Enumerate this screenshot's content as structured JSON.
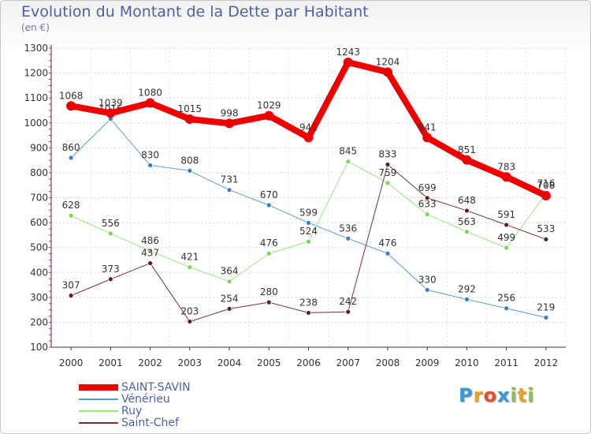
{
  "chart_data": {
    "type": "line",
    "title": "Evolution du Montant de la Dette par Habitant",
    "subtitle": "(en €)",
    "xlabel": "",
    "ylabel": "",
    "ylim": [
      100,
      1300
    ],
    "yticks": [
      100,
      200,
      300,
      400,
      500,
      600,
      700,
      800,
      900,
      1000,
      1100,
      1200,
      1300
    ],
    "x": [
      "2000",
      "2001",
      "2002",
      "2003",
      "2004",
      "2005",
      "2006",
      "2007",
      "2008",
      "2009",
      "2010",
      "2011",
      "2012"
    ],
    "series": [
      {
        "name": "Vénérieu",
        "color": "#5b9bd5",
        "marker": "#3b7cc2",
        "width": 1,
        "values": [
          860,
          1016,
          830,
          808,
          731,
          670,
          599,
          536,
          476,
          330,
          292,
          256,
          219
        ]
      },
      {
        "name": "Ruy",
        "color": "#99e67a",
        "marker": "#7fd45c",
        "width": 1,
        "values": [
          628,
          556,
          486,
          421,
          364,
          476,
          524,
          845,
          759,
          633,
          563,
          499,
          716
        ]
      },
      {
        "name": "Saint-Chef",
        "color": "#7a3030",
        "marker": "#5e1f1f",
        "width": 1,
        "values": [
          307,
          373,
          437,
          203,
          254,
          280,
          238,
          242,
          833,
          699,
          648,
          591,
          533
        ]
      },
      {
        "name": "SAINT-SAVIN",
        "color": "#ee0000",
        "marker": "#ee0000",
        "width": 8,
        "values": [
          1068,
          1039,
          1080,
          1015,
          998,
          1029,
          941,
          1243,
          1204,
          941,
          851,
          783,
          708
        ]
      }
    ]
  },
  "legend": [
    {
      "label": "SAINT-SAVIN",
      "color": "#ee0000",
      "thickness": 8
    },
    {
      "label": "Vénérieu",
      "color": "#5b9bd5",
      "thickness": 2
    },
    {
      "label": "Ruy",
      "color": "#99e67a",
      "thickness": 2
    },
    {
      "label": "Saint-Chef",
      "color": "#7a3030",
      "thickness": 2
    }
  ],
  "brand": {
    "letters": [
      "P",
      "r",
      "o",
      "x",
      "i",
      "t",
      "i"
    ],
    "colors": [
      "#3a9ad9",
      "#f0a020",
      "#e94e2b",
      "#3a9ad9",
      "#8bc34a",
      "#f0a020",
      "#8bc34a"
    ]
  }
}
